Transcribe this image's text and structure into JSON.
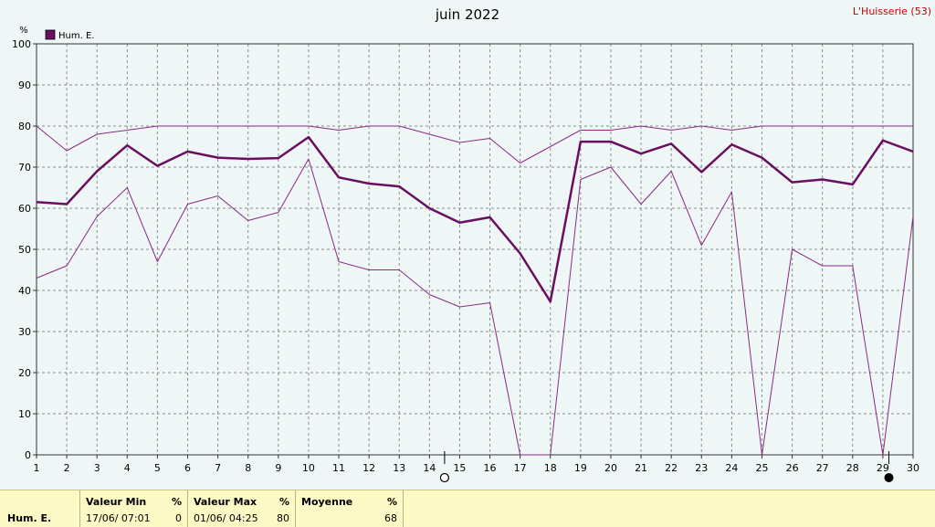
{
  "location": "L'Huisserie (53)",
  "chart_data": {
    "type": "line",
    "title": "juin 2022",
    "ylabel": "%",
    "xlabel": "",
    "x": [
      1,
      2,
      3,
      4,
      5,
      6,
      7,
      8,
      9,
      10,
      11,
      12,
      13,
      14,
      15,
      16,
      17,
      18,
      19,
      20,
      21,
      22,
      23,
      24,
      25,
      26,
      27,
      28,
      29,
      30
    ],
    "xlim": [
      1,
      30
    ],
    "ylim": [
      0,
      100
    ],
    "yticks": [
      0,
      10,
      20,
      30,
      40,
      50,
      60,
      70,
      80,
      90,
      100
    ],
    "grid": true,
    "legend_position": "top-left",
    "legend": [
      {
        "label": "Hum. E.",
        "color": "#6a0f5f"
      }
    ],
    "series": [
      {
        "role": "max",
        "color": "#8a2a85",
        "width": 1,
        "values": [
          80,
          74,
          78,
          79,
          80,
          80,
          80,
          80,
          80,
          80,
          79,
          80,
          80,
          78,
          76,
          77,
          71,
          75,
          79,
          79,
          80,
          79,
          80,
          79,
          80,
          80,
          80,
          80,
          80,
          80
        ]
      },
      {
        "role": "mean",
        "color": "#6a0f5f",
        "width": 2.5,
        "values": [
          61.5,
          61,
          69,
          75.3,
          70.3,
          73.8,
          72.3,
          72,
          72.2,
          77.3,
          67.5,
          66,
          65.3,
          60,
          56.5,
          57.8,
          49,
          37.3,
          76.2,
          76.2,
          73.3,
          75.7,
          68.8,
          75.5,
          72.3,
          66.3,
          67,
          65.8,
          76.5,
          73.8
        ]
      },
      {
        "role": "min",
        "color": "#8a2a85",
        "width": 1,
        "values": [
          43,
          46,
          58,
          65,
          47,
          61,
          63,
          57,
          59,
          72,
          47,
          45,
          45,
          39,
          36,
          37,
          0,
          0,
          67,
          70,
          61,
          69,
          51,
          64,
          0,
          50,
          46,
          46,
          0,
          58
        ]
      }
    ],
    "moon_phases": [
      {
        "x": 14.5,
        "phase": "new"
      },
      {
        "x": 29.2,
        "phase": "full"
      }
    ]
  },
  "summary": {
    "row_label": "Hum. E.",
    "min": {
      "header": "Valeur Min",
      "unit": "%",
      "date": "17/06/  07:01",
      "value": "0"
    },
    "max": {
      "header": "Valeur Max",
      "unit": "%",
      "date": "01/06/  04:25",
      "value": "80"
    },
    "mean": {
      "header": "Moyenne",
      "unit": "%",
      "value": "68"
    }
  }
}
